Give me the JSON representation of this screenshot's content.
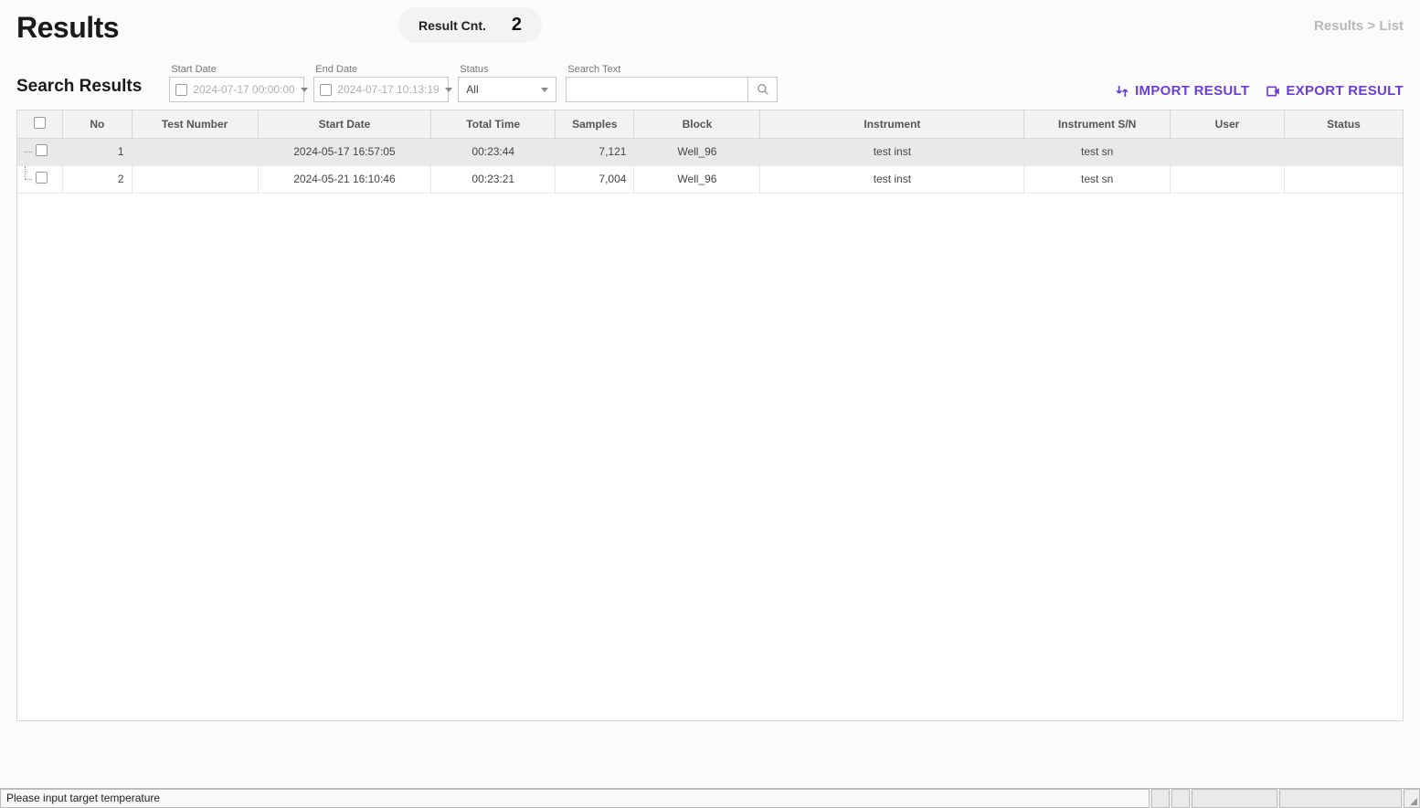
{
  "header": {
    "title": "Results",
    "resultCntLabel": "Result Cnt.",
    "resultCntValue": "2",
    "breadcrumb": "Results > List"
  },
  "filters": {
    "sectionLabel": "Search Results",
    "startDate": {
      "label": "Start Date",
      "value": "2024-07-17 00:00:00"
    },
    "endDate": {
      "label": "End Date",
      "value": "2024-07-17 10:13:19"
    },
    "status": {
      "label": "Status",
      "selected": "All"
    },
    "searchText": {
      "label": "Search Text",
      "value": ""
    }
  },
  "actions": {
    "import": "IMPORT RESULT",
    "export": "EXPORT RESULT"
  },
  "table": {
    "columns": [
      "No",
      "Test Number",
      "Start Date",
      "Total Time",
      "Samples",
      "Block",
      "Instrument",
      "Instrument S/N",
      "User",
      "Status"
    ],
    "rows": [
      {
        "no": "1",
        "testNumber": "",
        "startDate": "2024-05-17 16:57:05",
        "totalTime": "00:23:44",
        "samples": "7,121",
        "block": "Well_96",
        "instrument": "test inst",
        "sn": "test sn",
        "user": "",
        "status": "",
        "selected": true
      },
      {
        "no": "2",
        "testNumber": "",
        "startDate": "2024-05-21 16:10:46",
        "totalTime": "00:23:21",
        "samples": "7,004",
        "block": "Well_96",
        "instrument": "test inst",
        "sn": "test sn",
        "user": "",
        "status": "",
        "selected": false
      }
    ]
  },
  "statusBar": {
    "message": "Please input target temperature"
  },
  "colors": {
    "accent": "#6b3fd6",
    "headerBg": "#f2f2f2",
    "border": "#d8d8d8",
    "selectedRow": "#e9e9e9"
  }
}
